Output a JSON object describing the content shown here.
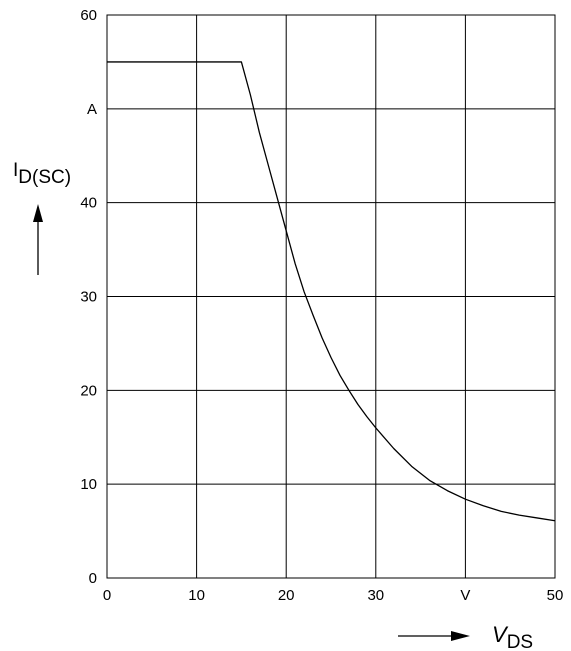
{
  "chart_data": {
    "type": "line",
    "title": "",
    "xlabel": {
      "symbol": "V",
      "subscript": "DS",
      "unit": "V"
    },
    "ylabel": {
      "symbol": "I",
      "subscript": "D(SC)",
      "unit": "A"
    },
    "xlim": [
      0,
      50
    ],
    "ylim": [
      0,
      60
    ],
    "x_ticks": [
      "0",
      "10",
      "20",
      "30",
      "V",
      "50"
    ],
    "y_ticks": [
      "0",
      "10",
      "20",
      "30",
      "40",
      "A",
      "60"
    ],
    "grid": true,
    "series": [
      {
        "x": [
          0,
          15,
          16,
          17,
          18,
          19,
          20,
          21,
          22,
          23,
          24,
          25,
          26,
          27,
          28,
          29,
          30,
          32,
          34,
          36,
          38,
          40,
          42,
          44,
          46,
          48,
          50
        ],
        "y": [
          55,
          55,
          51.5,
          47.5,
          44,
          40.5,
          37,
          33.5,
          30.5,
          28,
          25.6,
          23.5,
          21.6,
          20,
          18.5,
          17.2,
          16,
          13.8,
          11.9,
          10.4,
          9.3,
          8.4,
          7.7,
          7.1,
          6.7,
          6.4,
          6.1
        ]
      }
    ]
  },
  "colors": {
    "line": "#000000",
    "grid": "#000000",
    "background": "#ffffff"
  }
}
